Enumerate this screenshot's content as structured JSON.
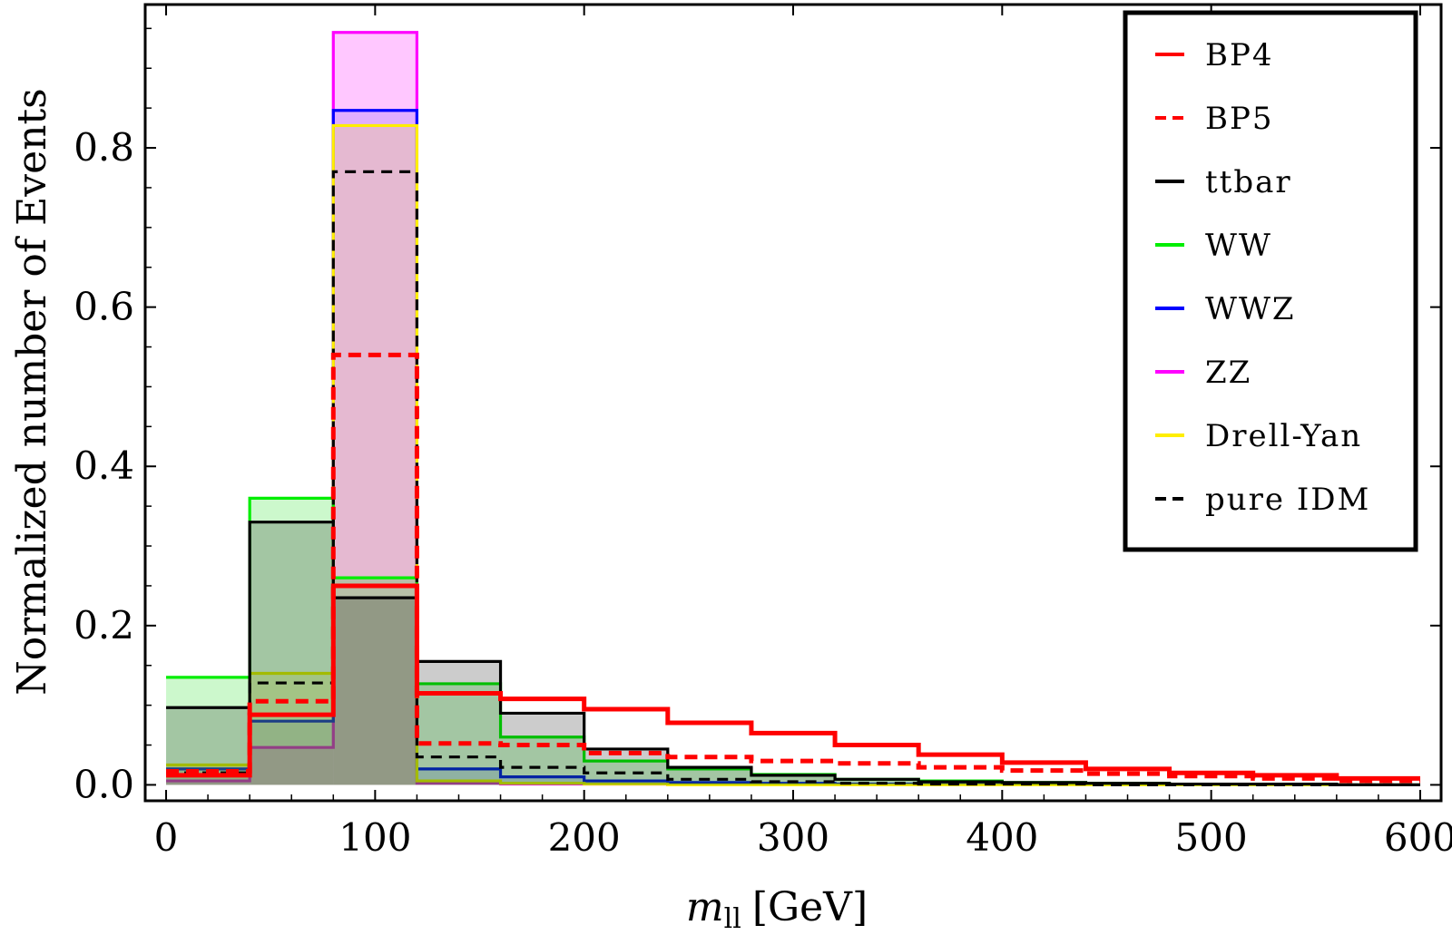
{
  "chart_data": {
    "type": "histogram",
    "xlabel": "m",
    "xlabel_subscript": "ll",
    "xlabel_unit": "[GeV]",
    "ylabel": "Normalized number of Events",
    "xlim": [
      -10,
      610
    ],
    "ylim": [
      -0.02,
      0.98
    ],
    "x_ticks": [
      0,
      100,
      200,
      300,
      400,
      500,
      600
    ],
    "x_tick_labels": [
      "0",
      "100",
      "200",
      "300",
      "400",
      "500",
      "600"
    ],
    "y_ticks": [
      0.0,
      0.2,
      0.4,
      0.6,
      0.8
    ],
    "y_tick_labels": [
      "0.0",
      "0.2",
      "0.4",
      "0.6",
      "0.8"
    ],
    "bin_edges": [
      0,
      40,
      80,
      120,
      160,
      200,
      240,
      280,
      320,
      360,
      400,
      440,
      480,
      520,
      560,
      600
    ],
    "legend_position": "top-right",
    "series": [
      {
        "name": "ZZ",
        "color": "#ff00ff",
        "fill": "#ff00ff",
        "fill_opacity": 0.22,
        "dash": "none",
        "values": [
          0.005,
          0.047,
          0.945,
          0.002,
          0.001,
          0.001,
          0.0,
          0.0,
          0.0,
          0.0,
          0.0,
          0.0,
          0.0,
          0.0,
          0.0
        ]
      },
      {
        "name": "WWZ",
        "color": "#0000ff",
        "fill": "#0000ff",
        "fill_opacity": 0.12,
        "dash": "none",
        "values": [
          0.02,
          0.08,
          0.847,
          0.02,
          0.01,
          0.005,
          0.003,
          0.002,
          0.001,
          0.001,
          0.0,
          0.0,
          0.0,
          0.0,
          0.0
        ]
      },
      {
        "name": "Drell-Yan",
        "color": "#ffee00",
        "fill": "#ffee00",
        "fill_opacity": 0.18,
        "dash": "none",
        "values": [
          0.025,
          0.14,
          0.828,
          0.005,
          0.002,
          0.001,
          0.0,
          0.0,
          0.0,
          0.0,
          0.0,
          0.0,
          0.0,
          0.0,
          0.0
        ]
      },
      {
        "name": "WW",
        "color": "#00ee00",
        "fill": "#00dd00",
        "fill_opacity": 0.2,
        "dash": "none",
        "values": [
          0.135,
          0.36,
          0.26,
          0.127,
          0.06,
          0.03,
          0.02,
          0.013,
          0.007,
          0.005,
          0.003,
          0.002,
          0.001,
          0.001,
          0.0
        ]
      },
      {
        "name": "ttbar",
        "color": "#000000",
        "fill": "#000000",
        "fill_opacity": 0.2,
        "dash": "none",
        "values": [
          0.097,
          0.33,
          0.235,
          0.155,
          0.09,
          0.045,
          0.022,
          0.012,
          0.007,
          0.004,
          0.003,
          0.002,
          0.001,
          0.001,
          0.0
        ]
      },
      {
        "name": "pure IDM",
        "color": "#000000",
        "fill": "none",
        "fill_opacity": 0,
        "dash": "12,8",
        "values": [
          0.015,
          0.128,
          0.77,
          0.035,
          0.022,
          0.015,
          0.007,
          0.004,
          0.002,
          0.001,
          0.001,
          0.0,
          0.0,
          0.0,
          0.0
        ]
      },
      {
        "name": "BP5",
        "color": "#ff0000",
        "fill": "none",
        "fill_opacity": 0,
        "dash": "14,8",
        "values": [
          0.017,
          0.105,
          0.54,
          0.052,
          0.05,
          0.04,
          0.035,
          0.03,
          0.027,
          0.022,
          0.018,
          0.014,
          0.011,
          0.008,
          0.005
        ]
      },
      {
        "name": "BP4",
        "color": "#ff0000",
        "fill": "none",
        "fill_opacity": 0,
        "dash": "none",
        "values": [
          0.012,
          0.088,
          0.25,
          0.115,
          0.108,
          0.095,
          0.078,
          0.065,
          0.05,
          0.038,
          0.028,
          0.02,
          0.015,
          0.012,
          0.008
        ]
      }
    ],
    "legend": [
      {
        "label": "BP4",
        "color": "#ff0000",
        "dash": "none"
      },
      {
        "label": "BP5",
        "color": "#ff0000",
        "dash": "12,7"
      },
      {
        "label": "ttbar",
        "color": "#000000",
        "dash": "none"
      },
      {
        "label": "WW",
        "color": "#00ee00",
        "dash": "none"
      },
      {
        "label": "WWZ",
        "color": "#0000ff",
        "dash": "none"
      },
      {
        "label": "ZZ",
        "color": "#ff00ff",
        "dash": "none"
      },
      {
        "label": "Drell-Yan",
        "color": "#ffee00",
        "dash": "none"
      },
      {
        "label": "pure IDM",
        "color": "#000000",
        "dash": "12,7"
      }
    ]
  }
}
